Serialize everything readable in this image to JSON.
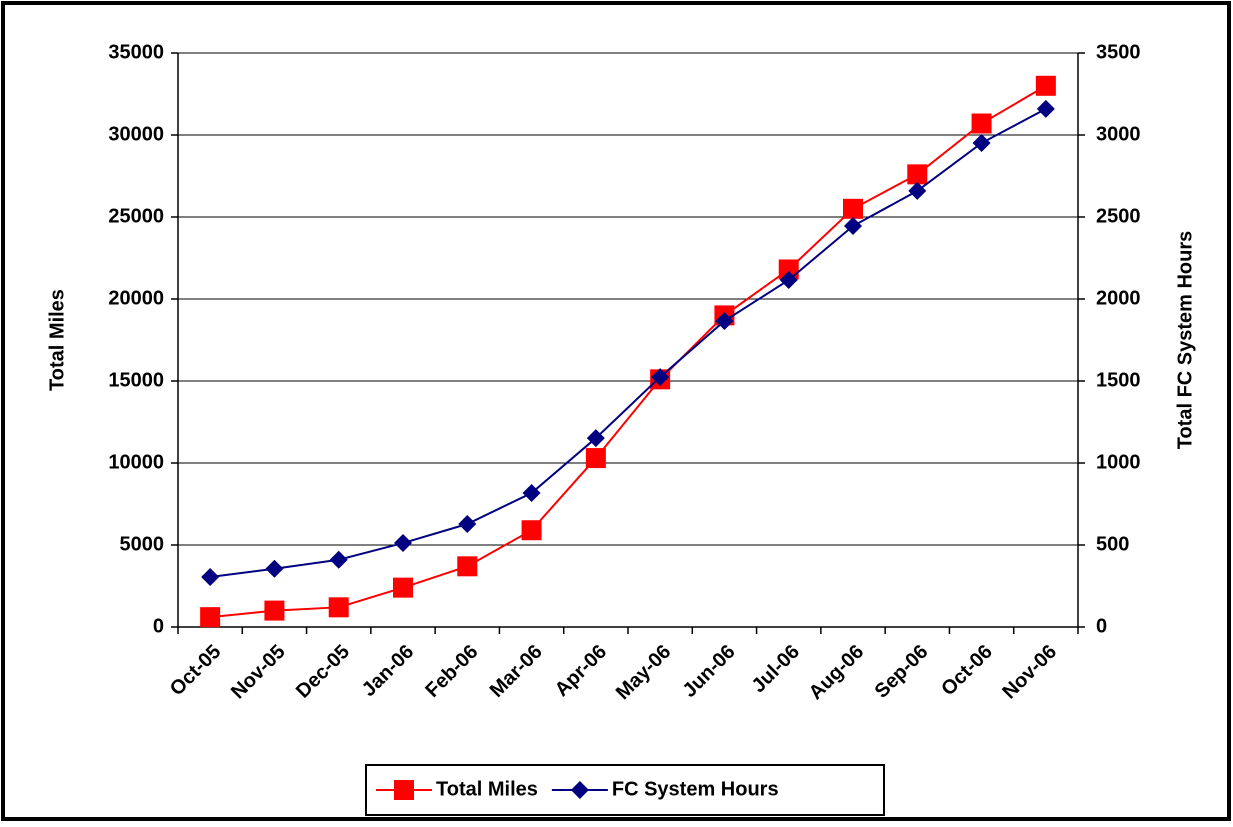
{
  "chart_data": {
    "type": "line",
    "categories": [
      "Oct-05",
      "Nov-05",
      "Dec-05",
      "Jan-06",
      "Feb-06",
      "Mar-06",
      "Apr-06",
      "May-06",
      "Jun-06",
      "Jul-06",
      "Aug-06",
      "Sep-06",
      "Oct-06",
      "Nov-06"
    ],
    "series": [
      {
        "name": "Total Miles",
        "color": "#ff0000",
        "marker": "square",
        "values": [
          600,
          1000,
          1200,
          2400,
          3700,
          5900,
          10300,
          15100,
          19000,
          21800,
          25500,
          27600,
          30700,
          33000
        ]
      },
      {
        "name": "FC System Hours",
        "color": "#000080",
        "marker": "diamond",
        "axis": "y2",
        "values": [
          305,
          355,
          410,
          512,
          628,
          817,
          1152,
          1524,
          1866,
          2116,
          2445,
          2659,
          2951,
          3159
        ]
      }
    ],
    "ylabel": "Total Miles",
    "y2label": "Total FC System Hours",
    "ylim": [
      0,
      35000
    ],
    "yticks": [
      0,
      5000,
      10000,
      15000,
      20000,
      25000,
      30000,
      35000
    ],
    "y2lim": [
      0,
      3500
    ],
    "y2ticks": [
      0,
      500,
      1000,
      1500,
      2000,
      2500,
      3000,
      3500
    ],
    "grid": true,
    "legend": "bottom"
  }
}
